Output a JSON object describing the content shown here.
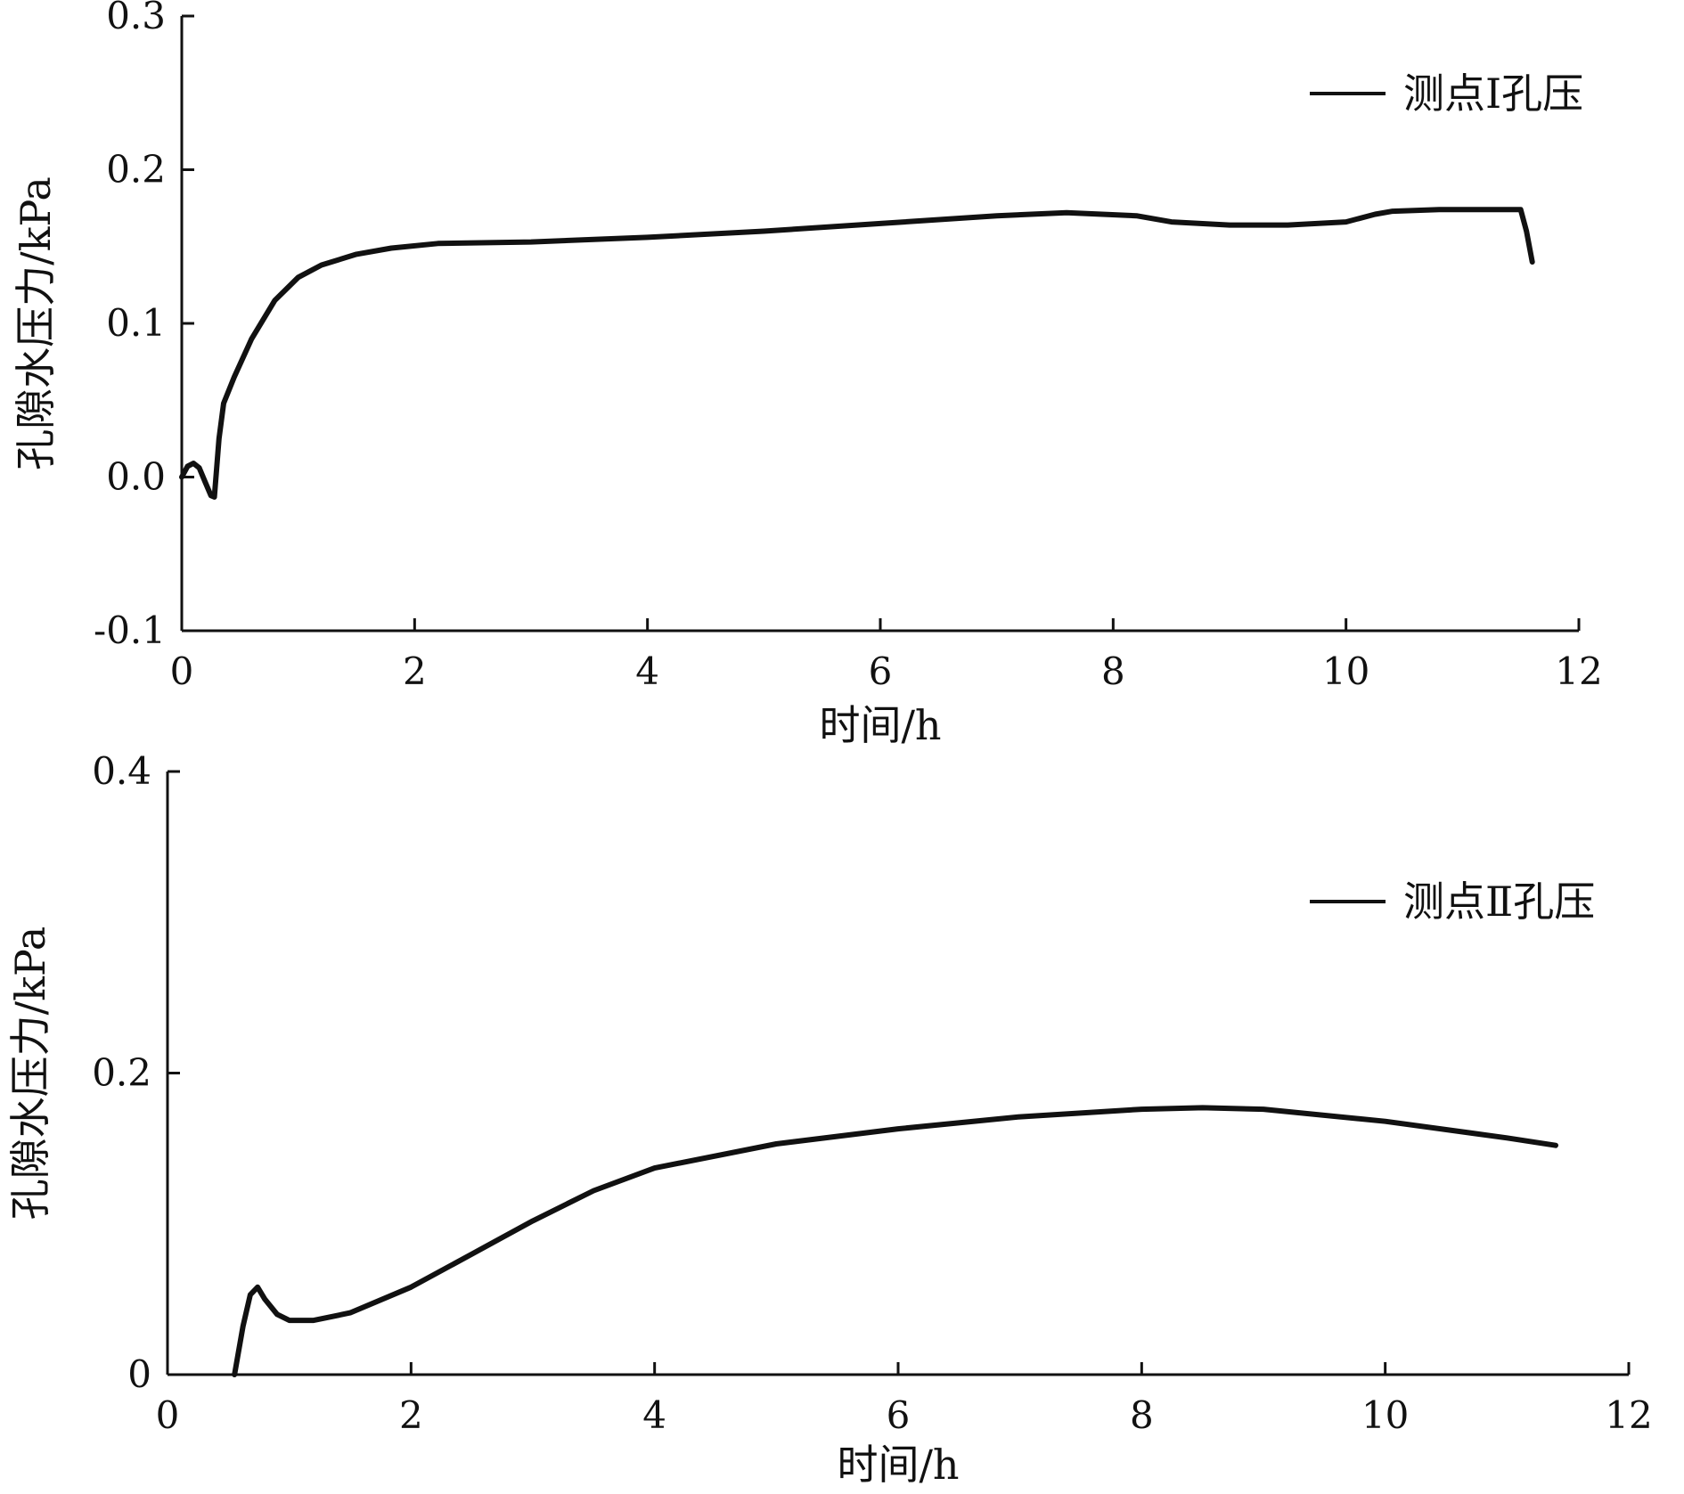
{
  "chart_data": [
    {
      "type": "line",
      "title": "",
      "xlabel": "时间/h",
      "ylabel": "孔隙水压力/kPa",
      "xlim": [
        0,
        12
      ],
      "ylim": [
        -0.1,
        0.3
      ],
      "xticks": [
        0,
        2,
        4,
        6,
        8,
        10,
        12
      ],
      "xtick_labels": [
        "0",
        "2",
        "4",
        "6",
        "8",
        "10",
        "12"
      ],
      "yticks": [
        -0.1,
        0.0,
        0.1,
        0.2,
        0.3
      ],
      "ytick_labels": [
        "-0.1",
        "0.0",
        "0.1",
        "0.2",
        "0.3"
      ],
      "legend_position": "top-right",
      "grid": false,
      "series": [
        {
          "name": "测点Ⅰ孔压",
          "color": "#111111",
          "x": [
            0,
            0.05,
            0.1,
            0.15,
            0.2,
            0.25,
            0.28,
            0.32,
            0.36,
            0.45,
            0.6,
            0.8,
            1.0,
            1.2,
            1.5,
            1.8,
            2.2,
            3.0,
            4.0,
            5.0,
            6.0,
            7.0,
            7.6,
            8.2,
            8.5,
            9.0,
            9.5,
            10.0,
            10.25,
            10.4,
            10.8,
            11.2,
            11.5,
            11.55,
            11.6
          ],
          "y": [
            0.0,
            0.007,
            0.009,
            0.006,
            -0.003,
            -0.012,
            -0.013,
            0.025,
            0.048,
            0.065,
            0.09,
            0.115,
            0.13,
            0.138,
            0.145,
            0.149,
            0.152,
            0.153,
            0.156,
            0.16,
            0.165,
            0.17,
            0.172,
            0.17,
            0.166,
            0.164,
            0.164,
            0.166,
            0.171,
            0.173,
            0.174,
            0.174,
            0.174,
            0.16,
            0.14
          ]
        }
      ]
    },
    {
      "type": "line",
      "title": "",
      "xlabel": "时间/h",
      "ylabel": "孔隙水压力/kPa",
      "xlim": [
        0,
        12
      ],
      "ylim": [
        0,
        0.4
      ],
      "xticks": [
        0,
        2,
        4,
        6,
        8,
        10,
        12
      ],
      "xtick_labels": [
        "0",
        "2",
        "4",
        "6",
        "8",
        "10",
        "12"
      ],
      "yticks": [
        0,
        0.2,
        0.4
      ],
      "ytick_labels": [
        "0",
        "0.2",
        "0.4"
      ],
      "legend_position": "top-right",
      "grid": false,
      "series": [
        {
          "name": "测点Ⅱ孔压",
          "color": "#111111",
          "x": [
            0.55,
            0.62,
            0.68,
            0.74,
            0.8,
            0.9,
            1.0,
            1.2,
            1.5,
            2.0,
            2.5,
            3.0,
            3.5,
            4.0,
            5.0,
            6.0,
            7.0,
            8.0,
            8.5,
            9.0,
            10.0,
            11.0,
            11.4
          ],
          "y": [
            0.0,
            0.032,
            0.053,
            0.058,
            0.05,
            0.04,
            0.036,
            0.036,
            0.041,
            0.058,
            0.08,
            0.102,
            0.122,
            0.137,
            0.153,
            0.163,
            0.171,
            0.176,
            0.177,
            0.176,
            0.168,
            0.157,
            0.152
          ]
        }
      ]
    }
  ]
}
